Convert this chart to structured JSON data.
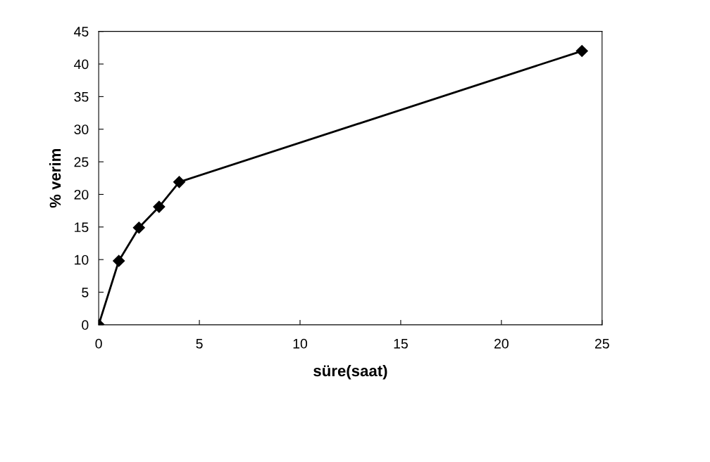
{
  "chart_data": {
    "type": "line",
    "xlabel": "süre(saat)",
    "ylabel": "% verim",
    "x": [
      0,
      1,
      2,
      3,
      4,
      24
    ],
    "series": [
      {
        "color": "#000000",
        "values": [
          0,
          9.8,
          14.9,
          18.1,
          21.9,
          42
        ]
      }
    ],
    "xlim": [
      0,
      25
    ],
    "xticks": [
      0,
      5,
      10,
      15,
      20,
      25
    ],
    "ylim": [
      0,
      45
    ],
    "yticks": [
      0,
      5,
      10,
      15,
      20,
      25,
      30,
      35,
      40,
      45
    ],
    "marker": "diamond",
    "line_style": "solid",
    "grid": false,
    "legend": false
  }
}
